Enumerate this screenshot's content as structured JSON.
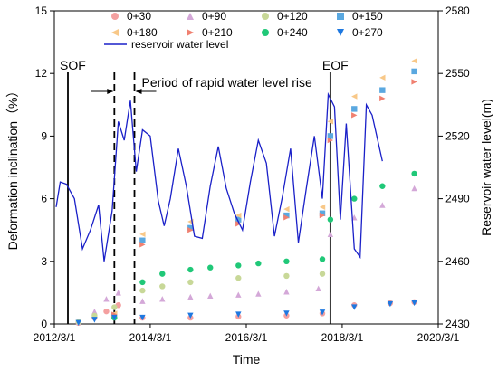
{
  "chart_data": {
    "type": "scatter",
    "xlabel": "Time",
    "ylabel_left": "Deformation inclination（%）",
    "ylabel_right": "Reservoir water level(m)",
    "x_ticks": [
      "2012/3/1",
      "2014/3/1",
      "2016/3/1",
      "2018/3/1",
      "2020/3/1"
    ],
    "xlim": [
      "2012/3/1",
      "2020/3/1"
    ],
    "ylim_left": [
      0,
      15
    ],
    "y_ticks_left": [
      "0",
      "3",
      "6",
      "9",
      "12",
      "15"
    ],
    "ylim_right": [
      2430,
      2580
    ],
    "y_ticks_right": [
      "2430",
      "2460",
      "2490",
      "2520",
      "2550",
      "2580"
    ],
    "annotations": {
      "sof": "SOF",
      "eof": "EOF",
      "rapid": "Period of rapid water level rise"
    },
    "series": [
      {
        "name": "0+30",
        "marker": "circle",
        "color": "#f4a0a0",
        "points": [
          [
            "2012/9/1",
            0.05
          ],
          [
            "2013/1/1",
            0.3
          ],
          [
            "2013/4/1",
            0.6
          ],
          [
            "2013/7/1",
            0.9
          ],
          [
            "2014/1/1",
            0.3
          ],
          [
            "2015/1/1",
            0.3
          ],
          [
            "2016/1/1",
            0.35
          ],
          [
            "2017/1/1",
            0.4
          ],
          [
            "2017/10/1",
            0.5
          ],
          [
            "2018/6/1",
            0.9
          ],
          [
            "2019/3/1",
            1.0
          ],
          [
            "2019/9/1",
            1.05
          ]
        ]
      },
      {
        "name": "0+90",
        "marker": "triangle-up",
        "color": "#d4a8d8",
        "points": [
          [
            "2012/9/1",
            0.1
          ],
          [
            "2013/1/1",
            0.6
          ],
          [
            "2013/4/1",
            1.2
          ],
          [
            "2013/7/1",
            1.5
          ],
          [
            "2014/1/1",
            1.1
          ],
          [
            "2014/6/1",
            1.2
          ],
          [
            "2015/1/1",
            1.3
          ],
          [
            "2015/6/1",
            1.35
          ],
          [
            "2016/1/1",
            1.4
          ],
          [
            "2016/6/1",
            1.45
          ],
          [
            "2017/1/1",
            1.55
          ],
          [
            "2017/9/1",
            1.7
          ],
          [
            "2017/12/1",
            4.3
          ],
          [
            "2018/6/1",
            5.1
          ],
          [
            "2019/1/1",
            5.7
          ],
          [
            "2019/9/1",
            6.5
          ]
        ]
      },
      {
        "name": "0+120",
        "marker": "circle",
        "color": "#c8d898",
        "points": [
          [
            "2012/9/1",
            0.1
          ],
          [
            "2013/1/1",
            0.4
          ],
          [
            "2013/6/1",
            0.8
          ],
          [
            "2014/1/1",
            1.6
          ],
          [
            "2014/6/1",
            1.8
          ],
          [
            "2015/1/1",
            2.0
          ],
          [
            "2016/1/1",
            2.2
          ],
          [
            "2017/1/1",
            2.3
          ],
          [
            "2017/10/1",
            2.4
          ]
        ]
      },
      {
        "name": "0+150",
        "marker": "square",
        "color": "#5aa8e0",
        "points": [
          [
            "2013/6/1",
            0.4
          ],
          [
            "2014/1/1",
            4.0
          ],
          [
            "2015/1/1",
            4.6
          ],
          [
            "2016/1/1",
            5.0
          ],
          [
            "2017/1/1",
            5.2
          ],
          [
            "2017/10/1",
            5.3
          ],
          [
            "2017/12/1",
            9.0
          ],
          [
            "2018/6/1",
            10.3
          ],
          [
            "2019/1/1",
            11.2
          ],
          [
            "2019/9/1",
            12.1
          ]
        ]
      },
      {
        "name": "0+180",
        "marker": "triangle-left",
        "color": "#f8c888",
        "points": [
          [
            "2013/6/1",
            0.5
          ],
          [
            "2014/1/1",
            4.3
          ],
          [
            "2015/1/1",
            4.9
          ],
          [
            "2016/1/1",
            5.2
          ],
          [
            "2017/1/1",
            5.5
          ],
          [
            "2017/10/1",
            5.6
          ],
          [
            "2017/12/1",
            9.7
          ],
          [
            "2018/6/1",
            10.9
          ],
          [
            "2019/1/1",
            11.8
          ],
          [
            "2019/9/1",
            12.6
          ]
        ]
      },
      {
        "name": "0+210",
        "marker": "triangle-right",
        "color": "#f08070",
        "points": [
          [
            "2013/6/1",
            0.45
          ],
          [
            "2014/1/1",
            3.8
          ],
          [
            "2015/1/1",
            4.5
          ],
          [
            "2016/1/1",
            4.8
          ],
          [
            "2017/1/1",
            5.1
          ],
          [
            "2017/10/1",
            5.2
          ],
          [
            "2017/12/1",
            8.8
          ],
          [
            "2018/6/1",
            10.0
          ],
          [
            "2019/1/1",
            10.8
          ],
          [
            "2019/9/1",
            11.6
          ]
        ]
      },
      {
        "name": "0+240",
        "marker": "circle",
        "color": "#20c878",
        "points": [
          [
            "2013/6/1",
            0.3
          ],
          [
            "2014/1/1",
            2.0
          ],
          [
            "2014/6/1",
            2.4
          ],
          [
            "2015/1/1",
            2.6
          ],
          [
            "2015/6/1",
            2.7
          ],
          [
            "2016/1/1",
            2.8
          ],
          [
            "2016/6/1",
            2.9
          ],
          [
            "2017/1/1",
            3.0
          ],
          [
            "2017/10/1",
            3.1
          ],
          [
            "2017/12/1",
            5.0
          ],
          [
            "2018/6/1",
            6.0
          ],
          [
            "2019/1/1",
            6.6
          ],
          [
            "2019/9/1",
            7.2
          ]
        ]
      },
      {
        "name": "0+270",
        "marker": "triangle-down",
        "color": "#1e78e0",
        "points": [
          [
            "2012/9/1",
            0.05
          ],
          [
            "2013/1/1",
            0.2
          ],
          [
            "2013/6/1",
            0.3
          ],
          [
            "2014/1/1",
            0.3
          ],
          [
            "2015/1/1",
            0.4
          ],
          [
            "2016/1/1",
            0.45
          ],
          [
            "2017/1/1",
            0.5
          ],
          [
            "2017/10/1",
            0.55
          ],
          [
            "2018/6/1",
            0.8
          ],
          [
            "2019/3/1",
            0.95
          ],
          [
            "2019/9/1",
            1.0
          ]
        ]
      }
    ],
    "water_level": {
      "name": "reservoir water level",
      "color": "#1a20c8",
      "points": [
        [
          "2012/3/15",
          2486
        ],
        [
          "2012/4/15",
          2498
        ],
        [
          "2012/6/1",
          2497
        ],
        [
          "2012/8/1",
          2490
        ],
        [
          "2012/10/1",
          2466
        ],
        [
          "2012/12/1",
          2475
        ],
        [
          "2013/2/1",
          2487
        ],
        [
          "2013/3/15",
          2460
        ],
        [
          "2013/5/15",
          2484
        ],
        [
          "2013/7/1",
          2527
        ],
        [
          "2013/8/15",
          2518
        ],
        [
          "2013/10/1",
          2537
        ],
        [
          "2013/11/15",
          2503
        ],
        [
          "2014/1/1",
          2523
        ],
        [
          "2014/3/1",
          2520
        ],
        [
          "2014/5/1",
          2489
        ],
        [
          "2014/6/15",
          2477
        ],
        [
          "2014/8/1",
          2490
        ],
        [
          "2014/10/1",
          2514
        ],
        [
          "2014/12/1",
          2496
        ],
        [
          "2015/2/1",
          2472
        ],
        [
          "2015/4/1",
          2471
        ],
        [
          "2015/6/1",
          2496
        ],
        [
          "2015/8/1",
          2515
        ],
        [
          "2015/10/1",
          2495
        ],
        [
          "2015/12/1",
          2483
        ],
        [
          "2016/2/1",
          2475
        ],
        [
          "2016/4/1",
          2498
        ],
        [
          "2016/6/1",
          2518
        ],
        [
          "2016/8/1",
          2507
        ],
        [
          "2016/10/1",
          2472
        ],
        [
          "2016/12/1",
          2491
        ],
        [
          "2017/2/1",
          2514
        ],
        [
          "2017/4/1",
          2469
        ],
        [
          "2017/6/1",
          2495
        ],
        [
          "2017/8/1",
          2520
        ],
        [
          "2017/10/1",
          2490
        ],
        [
          "2017/11/15",
          2540
        ],
        [
          "2018/1/1",
          2534
        ],
        [
          "2018/2/15",
          2480
        ],
        [
          "2018/4/1",
          2526
        ],
        [
          "2018/6/1",
          2466
        ],
        [
          "2018/7/15",
          2462
        ],
        [
          "2018/9/1",
          2535
        ],
        [
          "2018/10/15",
          2530
        ],
        [
          "2019/1/1",
          2508
        ]
      ]
    },
    "sof_date": "2012/3/1",
    "eof_date": "2017/12/1",
    "rapid_start": "2013/6/1",
    "rapid_end": "2013/11/1"
  }
}
